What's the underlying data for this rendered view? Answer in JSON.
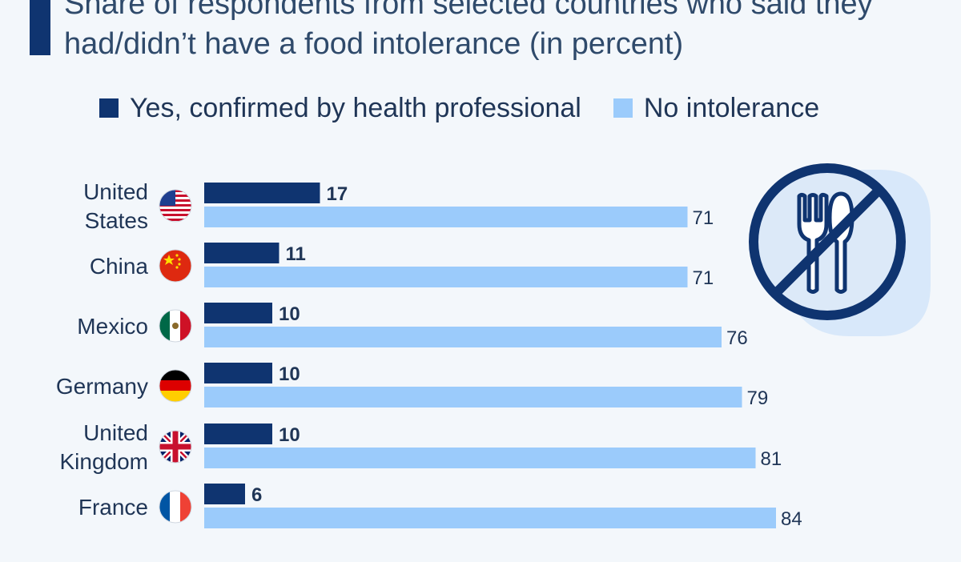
{
  "title": "Share of respondents from selected countries who said they had/didn’t have a food intolerance (in percent)",
  "legend": [
    {
      "label": "Yes, confirmed by health professional",
      "color": "#0f3470"
    },
    {
      "label": "No intolerance",
      "color": "#9bcbfb"
    }
  ],
  "illustration": {
    "icon": "no-cutlery-icon",
    "colors": {
      "ring": "#0f3470",
      "fill": "#dce9f8",
      "shadow": "#c8e0fa"
    }
  },
  "chart_data": {
    "type": "bar",
    "orientation": "horizontal",
    "categories": [
      "United States",
      "China",
      "Mexico",
      "Germany",
      "United Kingdom",
      "France"
    ],
    "category_lines": [
      [
        "United",
        "States"
      ],
      [
        "China"
      ],
      [
        "Mexico"
      ],
      [
        "Germany"
      ],
      [
        "United",
        "Kingdom"
      ],
      [
        "France"
      ]
    ],
    "flags": [
      "us-flag-icon",
      "china-flag-icon",
      "mexico-flag-icon",
      "germany-flag-icon",
      "uk-flag-icon",
      "france-flag-icon"
    ],
    "series": [
      {
        "name": "Yes, confirmed by health professional",
        "color": "#0f3470",
        "values": [
          17,
          11,
          10,
          10,
          10,
          6
        ]
      },
      {
        "name": "No intolerance",
        "color": "#9bcbfb",
        "values": [
          71,
          71,
          76,
          79,
          81,
          84
        ]
      }
    ],
    "xlim": [
      0,
      100
    ],
    "grid": false,
    "legend_position": "top"
  }
}
